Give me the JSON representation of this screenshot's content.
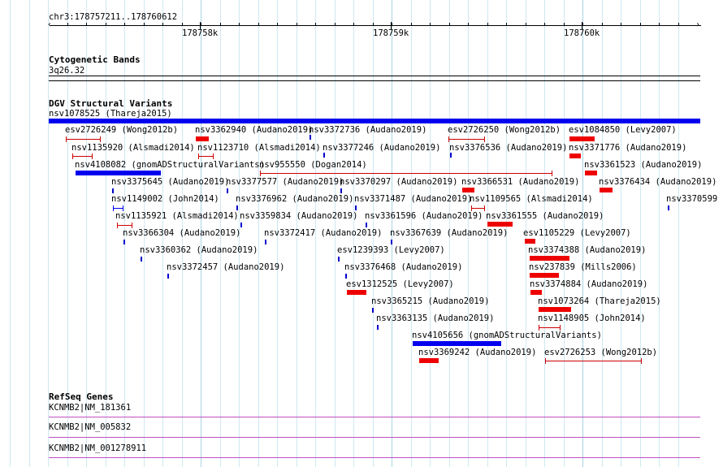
{
  "ruler": {
    "location": "chr3:178757211..178760612",
    "ticks": [
      "178758k",
      "178759k",
      "178760k"
    ]
  },
  "cytoband": {
    "title": "Cytogenetic Bands",
    "band": "3q26.32"
  },
  "dgv": {
    "title": "DGV Structural Variants",
    "colors": {
      "blue": "#0000ee",
      "red": "#ee0000",
      "ticks": "#0000cc",
      "whisker": "#cc0000"
    },
    "features": [
      {
        "label": "nsv1078525 (Thareja2015)",
        "color": "blue",
        "kind": "bar"
      },
      {
        "label": "esv2726249 (Wong2012b)",
        "color": "red",
        "kind": "whisker"
      },
      {
        "label": "nsv3362940 (Audano2019)",
        "color": "red",
        "kind": "bar"
      },
      {
        "label": "nsv3372736 (Audano2019)",
        "color": "blue",
        "kind": "tick"
      },
      {
        "label": "esv2726250 (Wong2012b)",
        "color": "red",
        "kind": "whisker"
      },
      {
        "label": "esv1084850 (Levy2007)",
        "color": "red",
        "kind": "bar"
      },
      {
        "label": "nsv1135920 (Alsmadi2014)",
        "color": "red",
        "kind": "whisker"
      },
      {
        "label": "nsv1123710 (Alsmadi2014)",
        "color": "red",
        "kind": "whisker"
      },
      {
        "label": "nsv3377246 (Audano2019)",
        "color": "blue",
        "kind": "tick"
      },
      {
        "label": "nsv3376536 (Audano2019)",
        "color": "blue",
        "kind": "tick"
      },
      {
        "label": "nsv3371776 (Audano2019)",
        "color": "red",
        "kind": "bar"
      },
      {
        "label": "nsv4108082 (gnomADStructuralVariants)",
        "color": "blue",
        "kind": "bar"
      },
      {
        "label": "nsv955550 (Dogan2014)",
        "color": "red",
        "kind": "whisker"
      },
      {
        "label": "nsv3361523 (Audano2019)",
        "color": "red",
        "kind": "bar"
      },
      {
        "label": "nsv3375645 (Audano2019)",
        "color": "blue",
        "kind": "tick"
      },
      {
        "label": "nsv3377577 (Audano2019)",
        "color": "blue",
        "kind": "tick"
      },
      {
        "label": "nsv3370297 (Audano2019)",
        "color": "blue",
        "kind": "tick"
      },
      {
        "label": "nsv3366531 (Audano2019)",
        "color": "red",
        "kind": "bar"
      },
      {
        "label": "nsv3376434 (Audano2019)",
        "color": "red",
        "kind": "bar"
      },
      {
        "label": "nsv1149002 (John2014)",
        "color": "blue",
        "kind": "whisker"
      },
      {
        "label": "nsv3376962 (Audano2019)",
        "color": "blue",
        "kind": "tick"
      },
      {
        "label": "nsv3371487 (Audano2019)",
        "color": "blue",
        "kind": "tick"
      },
      {
        "label": "nsv1109565 (Alsmadi2014)",
        "color": "red",
        "kind": "whisker"
      },
      {
        "label": "nsv3370599 (",
        "color": "blue",
        "kind": "tick"
      },
      {
        "label": "nsv1135921 (Alsmadi2014)",
        "color": "red",
        "kind": "whisker"
      },
      {
        "label": "nsv3359834 (Audano2019)",
        "color": "blue",
        "kind": "tick"
      },
      {
        "label": "nsv3361596 (Audano2019)",
        "color": "blue",
        "kind": "tick"
      },
      {
        "label": "nsv3361555 (Audano2019)",
        "color": "red",
        "kind": "bar"
      },
      {
        "label": "nsv3366304 (Audano2019)",
        "color": "blue",
        "kind": "tick"
      },
      {
        "label": "nsv3372417 (Audano2019)",
        "color": "blue",
        "kind": "tick"
      },
      {
        "label": "nsv3367639 (Audano2019)",
        "color": "blue",
        "kind": "tick"
      },
      {
        "label": "esv1105229 (Levy2007)",
        "color": "red",
        "kind": "bar"
      },
      {
        "label": "nsv3360362 (Audano2019)",
        "color": "blue",
        "kind": "tick"
      },
      {
        "label": "esv1239393 (Levy2007)",
        "color": "blue",
        "kind": "tick"
      },
      {
        "label": "nsv3374388 (Audano2019)",
        "color": "red",
        "kind": "bar"
      },
      {
        "label": "nsv3372457 (Audano2019)",
        "color": "blue",
        "kind": "tick"
      },
      {
        "label": "nsv3376468 (Audano2019)",
        "color": "blue",
        "kind": "tick"
      },
      {
        "label": "nsv237839 (Mills2006)",
        "color": "red",
        "kind": "bar"
      },
      {
        "label": "esv1312525 (Levy2007)",
        "color": "red",
        "kind": "bar"
      },
      {
        "label": "nsv3374884 (Audano2019)",
        "color": "red",
        "kind": "bar"
      },
      {
        "label": "nsv3365215 (Audano2019)",
        "color": "blue",
        "kind": "tick"
      },
      {
        "label": "nsv1073264 (Thareja2015)",
        "color": "red",
        "kind": "bar"
      },
      {
        "label": "nsv3363135 (Audano2019)",
        "color": "blue",
        "kind": "tick"
      },
      {
        "label": "nsv1148905 (John2014)",
        "color": "red",
        "kind": "whisker"
      },
      {
        "label": "nsv4105656 (gnomADStructuralVariants)",
        "color": "blue",
        "kind": "bar"
      },
      {
        "label": "nsv3369242 (Audano2019)",
        "color": "red",
        "kind": "bar"
      },
      {
        "label": "esv2726253 (Wong2012b)",
        "color": "red",
        "kind": "whisker"
      }
    ]
  },
  "refseq": {
    "title": "RefSeq Genes",
    "gene_color": "#c050c0",
    "genes": [
      "KCNMB2|NM_181361",
      "KCNMB2|NM_005832",
      "KCNMB2|NM_001278911"
    ]
  }
}
